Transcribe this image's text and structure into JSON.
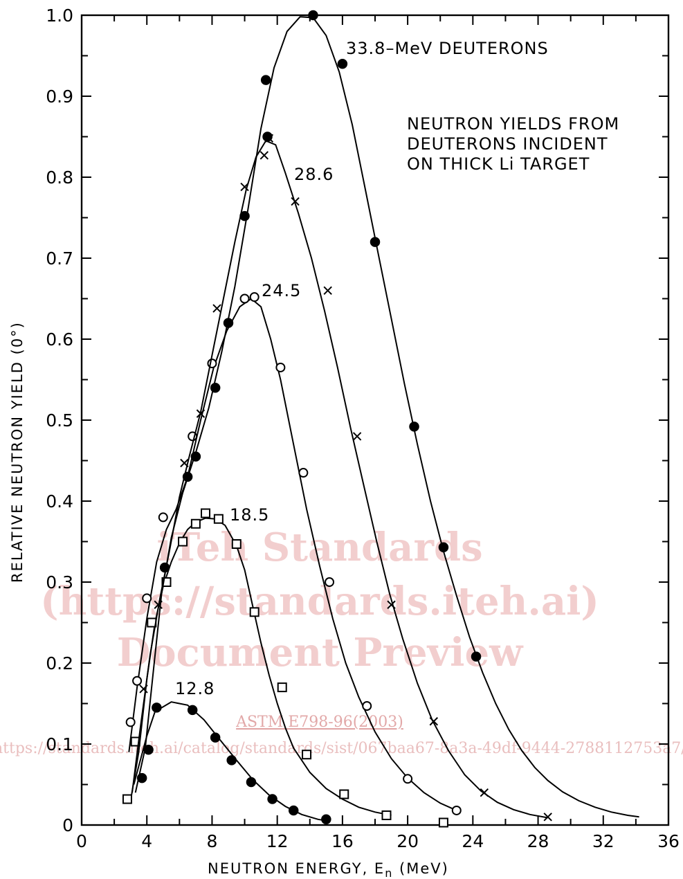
{
  "chart_data": {
    "type": "line",
    "title": "",
    "xlabel": "NEUTRON ENERGY, E",
    "xlabel_subscript": "n",
    "xlabel_unit": " (MeV)",
    "ylabel": "RELATIVE NEUTRON YIELD (0°)",
    "xlim": [
      0,
      36
    ],
    "ylim": [
      0,
      1.0
    ],
    "x_ticks": [
      0,
      4,
      8,
      12,
      16,
      20,
      24,
      28,
      32,
      36
    ],
    "x_tick_labels": [
      "0",
      "4",
      "8",
      "12",
      "16",
      "20",
      "24",
      "28",
      "32",
      "36"
    ],
    "y_ticks": [
      0,
      0.1,
      0.2,
      0.3,
      0.4,
      0.5,
      0.6,
      0.7,
      0.8,
      0.9,
      1.0
    ],
    "y_tick_labels": [
      "0",
      "0.1",
      "0.2",
      "0.3",
      "0.4",
      "0.5",
      "0.6",
      "0.7",
      "0.8",
      "0.9",
      "1.0"
    ],
    "grid": false,
    "annotations": {
      "description": [
        "NEUTRON YIELDS FROM",
        "DEUTERONS INCIDENT",
        "ON THICK Li TARGET"
      ],
      "labels": [
        "33.8–MeV DEUTERONS",
        "28.6",
        "24.5",
        "18.5",
        "12.8"
      ]
    },
    "series": [
      {
        "marker": "filled-circle",
        "points": [
          [
            4.6,
            0.145
          ],
          [
            6.8,
            0.142
          ],
          [
            8.2,
            0.108
          ],
          [
            9.2,
            0.08
          ],
          [
            10.4,
            0.053
          ],
          [
            11.7,
            0.032
          ],
          [
            13.0,
            0.018
          ],
          [
            15.0,
            0.007
          ]
        ],
        "curve": [
          [
            3.2,
            0.05
          ],
          [
            3.6,
            0.08
          ],
          [
            4.0,
            0.11
          ],
          [
            4.5,
            0.14
          ],
          [
            5.5,
            0.152
          ],
          [
            6.5,
            0.148
          ],
          [
            7.5,
            0.13
          ],
          [
            8.5,
            0.105
          ],
          [
            9.5,
            0.08
          ],
          [
            10.5,
            0.056
          ],
          [
            11.5,
            0.037
          ],
          [
            12.5,
            0.023
          ],
          [
            13.5,
            0.013
          ],
          [
            14.5,
            0.007
          ],
          [
            15.1,
            0.005
          ]
        ]
      },
      {
        "marker": "open-square",
        "points": [
          [
            2.8,
            0.032
          ],
          [
            3.3,
            0.103
          ],
          [
            4.3,
            0.25
          ],
          [
            5.2,
            0.3
          ],
          [
            6.2,
            0.35
          ],
          [
            7.0,
            0.372
          ],
          [
            7.6,
            0.385
          ],
          [
            8.4,
            0.378
          ],
          [
            9.5,
            0.347
          ],
          [
            10.6,
            0.263
          ],
          [
            12.3,
            0.17
          ],
          [
            13.8,
            0.087
          ],
          [
            16.1,
            0.038
          ],
          [
            18.7,
            0.012
          ],
          [
            22.2,
            0.003
          ]
        ],
        "curve": [
          [
            3.0,
            0.03
          ],
          [
            3.5,
            0.09
          ],
          [
            4.0,
            0.18
          ],
          [
            4.5,
            0.25
          ],
          [
            5.0,
            0.295
          ],
          [
            5.5,
            0.325
          ],
          [
            6.0,
            0.348
          ],
          [
            6.5,
            0.365
          ],
          [
            7.0,
            0.374
          ],
          [
            7.6,
            0.379
          ],
          [
            8.2,
            0.378
          ],
          [
            8.8,
            0.37
          ],
          [
            9.5,
            0.345
          ],
          [
            10.0,
            0.315
          ],
          [
            10.5,
            0.27
          ],
          [
            11.0,
            0.225
          ],
          [
            11.5,
            0.185
          ],
          [
            12.0,
            0.15
          ],
          [
            12.5,
            0.12
          ],
          [
            13.0,
            0.095
          ],
          [
            14.0,
            0.065
          ],
          [
            15.0,
            0.045
          ],
          [
            16.0,
            0.032
          ],
          [
            17.0,
            0.022
          ],
          [
            18.0,
            0.016
          ],
          [
            19.0,
            0.012
          ]
        ]
      },
      {
        "marker": "open-circle",
        "points": [
          [
            3.0,
            0.127
          ],
          [
            3.4,
            0.178
          ],
          [
            4.0,
            0.28
          ],
          [
            5.0,
            0.38
          ],
          [
            6.8,
            0.48
          ],
          [
            8.0,
            0.57
          ],
          [
            10.0,
            0.65
          ],
          [
            10.6,
            0.652
          ],
          [
            12.2,
            0.565
          ],
          [
            13.6,
            0.435
          ],
          [
            15.2,
            0.3
          ],
          [
            17.5,
            0.147
          ],
          [
            20.0,
            0.057
          ],
          [
            23.0,
            0.018
          ]
        ],
        "curve": [
          [
            2.9,
            0.09
          ],
          [
            3.4,
            0.17
          ],
          [
            4.0,
            0.255
          ],
          [
            4.6,
            0.325
          ],
          [
            5.2,
            0.365
          ],
          [
            5.8,
            0.39
          ],
          [
            6.5,
            0.43
          ],
          [
            7.3,
            0.5
          ],
          [
            8.1,
            0.565
          ],
          [
            8.9,
            0.61
          ],
          [
            9.7,
            0.64
          ],
          [
            10.4,
            0.65
          ],
          [
            11.0,
            0.64
          ],
          [
            11.6,
            0.6
          ],
          [
            12.2,
            0.55
          ],
          [
            13.0,
            0.47
          ],
          [
            13.8,
            0.39
          ],
          [
            14.6,
            0.32
          ],
          [
            15.4,
            0.255
          ],
          [
            16.2,
            0.2
          ],
          [
            17.0,
            0.158
          ],
          [
            18.0,
            0.115
          ],
          [
            19.0,
            0.082
          ],
          [
            20.0,
            0.058
          ],
          [
            21.0,
            0.04
          ],
          [
            22.0,
            0.027
          ],
          [
            23.0,
            0.018
          ]
        ]
      },
      {
        "marker": "cross",
        "points": [
          [
            3.8,
            0.168
          ],
          [
            4.7,
            0.272
          ],
          [
            6.3,
            0.447
          ],
          [
            7.3,
            0.508
          ],
          [
            8.3,
            0.638
          ],
          [
            10.0,
            0.788
          ],
          [
            11.2,
            0.827
          ],
          [
            11.5,
            0.848
          ],
          [
            13.1,
            0.77
          ],
          [
            15.1,
            0.66
          ],
          [
            16.9,
            0.48
          ],
          [
            19.0,
            0.272
          ],
          [
            21.6,
            0.128
          ],
          [
            24.7,
            0.04
          ],
          [
            28.6,
            0.01
          ]
        ],
        "curve": [
          [
            3.1,
            0.04
          ],
          [
            3.6,
            0.12
          ],
          [
            4.2,
            0.21
          ],
          [
            4.8,
            0.28
          ],
          [
            5.4,
            0.34
          ],
          [
            6.0,
            0.405
          ],
          [
            6.6,
            0.455
          ],
          [
            7.3,
            0.51
          ],
          [
            8.0,
            0.58
          ],
          [
            8.7,
            0.65
          ],
          [
            9.4,
            0.72
          ],
          [
            10.1,
            0.785
          ],
          [
            10.7,
            0.825
          ],
          [
            11.3,
            0.845
          ],
          [
            11.9,
            0.84
          ],
          [
            12.5,
            0.805
          ],
          [
            13.3,
            0.755
          ],
          [
            14.1,
            0.7
          ],
          [
            14.9,
            0.635
          ],
          [
            15.7,
            0.565
          ],
          [
            16.5,
            0.49
          ],
          [
            17.3,
            0.42
          ],
          [
            18.1,
            0.35
          ],
          [
            18.9,
            0.285
          ],
          [
            19.7,
            0.23
          ],
          [
            20.6,
            0.175
          ],
          [
            21.5,
            0.13
          ],
          [
            22.5,
            0.092
          ],
          [
            23.5,
            0.062
          ],
          [
            24.5,
            0.042
          ],
          [
            25.5,
            0.028
          ],
          [
            26.5,
            0.019
          ],
          [
            27.5,
            0.013
          ],
          [
            28.6,
            0.009
          ]
        ]
      },
      {
        "marker": "filled-circle",
        "points": [
          [
            3.7,
            0.058
          ],
          [
            4.1,
            0.093
          ],
          [
            5.1,
            0.318
          ],
          [
            6.5,
            0.43
          ],
          [
            7.0,
            0.455
          ],
          [
            8.2,
            0.54
          ],
          [
            9.0,
            0.62
          ],
          [
            10.0,
            0.752
          ],
          [
            11.3,
            0.92
          ],
          [
            11.4,
            0.85
          ],
          [
            14.2,
            1.0
          ],
          [
            16.0,
            0.94
          ],
          [
            18.0,
            0.72
          ],
          [
            20.4,
            0.492
          ],
          [
            22.2,
            0.343
          ],
          [
            24.2,
            0.208
          ]
        ],
        "curve": [
          [
            3.3,
            0.04
          ],
          [
            3.9,
            0.095
          ],
          [
            4.4,
            0.19
          ],
          [
            4.9,
            0.285
          ],
          [
            5.5,
            0.355
          ],
          [
            6.2,
            0.41
          ],
          [
            7.0,
            0.46
          ],
          [
            7.8,
            0.515
          ],
          [
            8.6,
            0.585
          ],
          [
            9.4,
            0.665
          ],
          [
            10.2,
            0.76
          ],
          [
            11.0,
            0.86
          ],
          [
            11.8,
            0.935
          ],
          [
            12.6,
            0.98
          ],
          [
            13.4,
            0.998
          ],
          [
            14.2,
            0.997
          ],
          [
            15.0,
            0.975
          ],
          [
            15.8,
            0.93
          ],
          [
            16.6,
            0.865
          ],
          [
            17.4,
            0.785
          ],
          [
            18.2,
            0.705
          ],
          [
            19.0,
            0.625
          ],
          [
            19.8,
            0.545
          ],
          [
            20.6,
            0.47
          ],
          [
            21.4,
            0.4
          ],
          [
            22.2,
            0.338
          ],
          [
            23.0,
            0.283
          ],
          [
            23.8,
            0.232
          ],
          [
            24.6,
            0.188
          ],
          [
            25.4,
            0.15
          ],
          [
            26.2,
            0.118
          ],
          [
            27.0,
            0.092
          ],
          [
            27.8,
            0.071
          ],
          [
            28.6,
            0.055
          ],
          [
            29.5,
            0.041
          ],
          [
            30.5,
            0.03
          ],
          [
            31.5,
            0.022
          ],
          [
            32.5,
            0.016
          ],
          [
            33.5,
            0.012
          ],
          [
            34.2,
            0.01
          ]
        ]
      }
    ]
  },
  "watermark": {
    "line1": "iTeh Standards",
    "line2": "(https://standards.iteh.ai)",
    "line3": "Document Preview",
    "link": "ASTM E798-96(2003)",
    "url": "https://standards.iteh.ai/catalog/standards/sist/067baa67-8a3a-49df-9444-2788112753a7/astm-e798-962003"
  }
}
